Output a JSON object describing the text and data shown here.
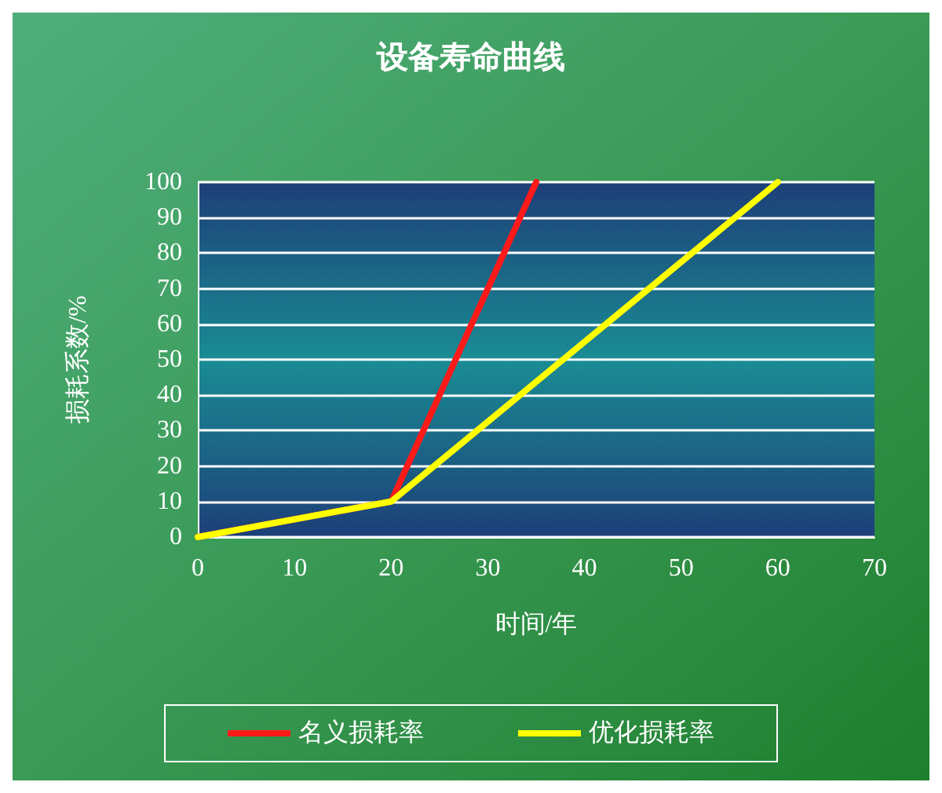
{
  "chart_data": {
    "type": "line",
    "title": "设备寿命曲线",
    "xlabel": "时间/年",
    "ylabel": "损耗系数/%",
    "series": [
      {
        "name": "名义损耗率",
        "color": "#ff1a1a",
        "x": [
          0,
          20,
          35
        ],
        "values": [
          0,
          10,
          100
        ]
      },
      {
        "name": "优化损耗率",
        "color": "#ffff00",
        "x": [
          0,
          20,
          60
        ],
        "values": [
          0,
          10,
          100
        ]
      }
    ],
    "xlim": [
      0,
      70
    ],
    "xticks": [
      0,
      10,
      20,
      30,
      40,
      50,
      60,
      70
    ],
    "ylim": [
      0,
      100
    ],
    "yticks": [
      0,
      10,
      20,
      30,
      40,
      50,
      60,
      70,
      80,
      90,
      100
    ],
    "grid": "y",
    "legend": "bottom",
    "marker": "none",
    "line_style": "solid"
  }
}
